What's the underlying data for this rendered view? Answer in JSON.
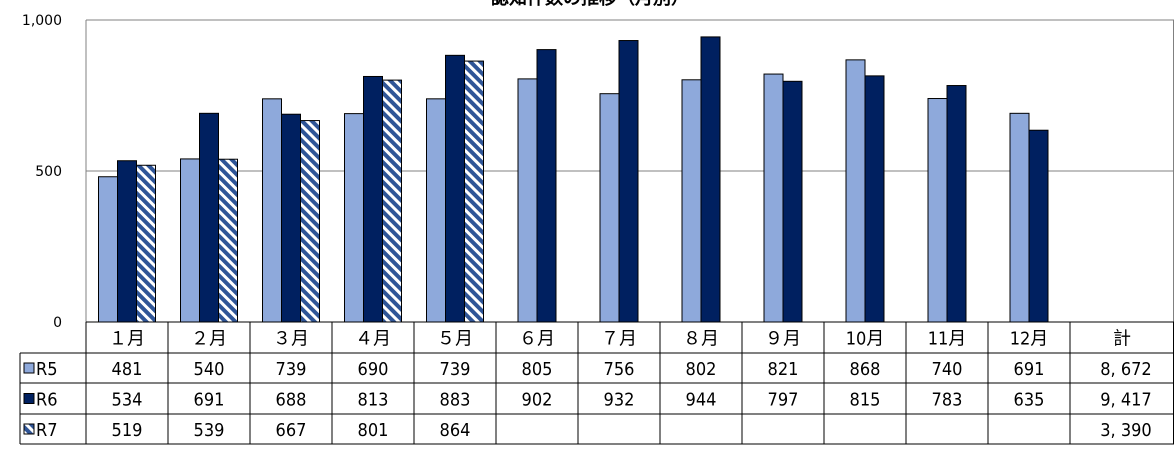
{
  "chart_data": {
    "type": "bar",
    "title": "認知件数の推移（月別）",
    "categories": [
      "１月",
      "２月",
      "３月",
      "４月",
      "５月",
      "６月",
      "７月",
      "８月",
      "９月",
      "10月",
      "11月",
      "12月"
    ],
    "total_label": "計",
    "ylim": [
      0,
      1000
    ],
    "yticks": [
      0,
      500,
      1000
    ],
    "ytick_labels": [
      "0",
      "500",
      "1,000"
    ],
    "grid": true,
    "legend": "table-left",
    "series": [
      {
        "name": "R5",
        "fill": "#8EA9DB",
        "pattern": "solid",
        "values": [
          481,
          540,
          739,
          690,
          739,
          805,
          756,
          802,
          821,
          868,
          740,
          691
        ],
        "labels": [
          "481",
          "540",
          "739",
          "690",
          "739",
          "805",
          "756",
          "802",
          "821",
          "868",
          "740",
          "691"
        ],
        "total": "8, 672"
      },
      {
        "name": "R6",
        "fill": "#002060",
        "pattern": "solid",
        "values": [
          534,
          691,
          688,
          813,
          883,
          902,
          932,
          944,
          797,
          815,
          783,
          635
        ],
        "labels": [
          "534",
          "691",
          "688",
          "813",
          "883",
          "902",
          "932",
          "944",
          "797",
          "815",
          "783",
          "635"
        ],
        "total": "9, 417"
      },
      {
        "name": "R7",
        "fill": "#2F5597",
        "pattern": "hatch",
        "values": [
          519,
          539,
          667,
          801,
          864,
          null,
          null,
          null,
          null,
          null,
          null,
          null
        ],
        "labels": [
          "519",
          "539",
          "667",
          "801",
          "864",
          "",
          "",
          "",
          "",
          "",
          "",
          ""
        ],
        "total": "3, 390"
      }
    ]
  }
}
